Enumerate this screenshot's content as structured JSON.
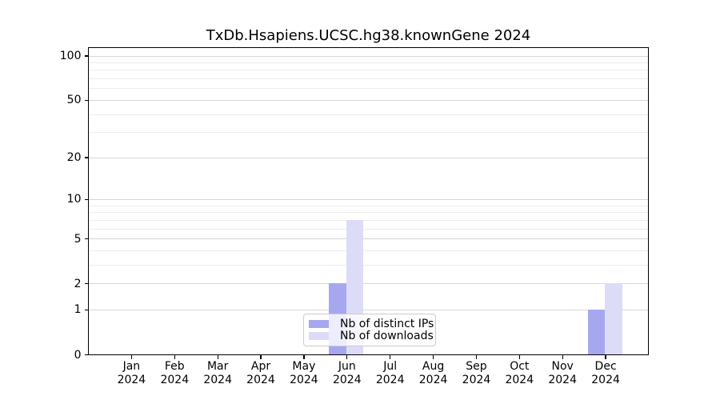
{
  "chart_data": {
    "type": "bar",
    "title": "TxDb.Hsapiens.UCSC.hg38.knownGene 2024",
    "categories": [
      "Jan",
      "Feb",
      "Mar",
      "Apr",
      "May",
      "Jun",
      "Jul",
      "Aug",
      "Sep",
      "Oct",
      "Nov",
      "Dec"
    ],
    "category_year": "2024",
    "series": [
      {
        "name": "Nb of distinct IPs",
        "color": "#a7a7f0",
        "values": [
          0,
          0,
          0,
          0,
          0,
          2,
          0,
          0,
          0,
          0,
          0,
          1
        ]
      },
      {
        "name": "Nb of downloads",
        "color": "#dcdcf8",
        "values": [
          0,
          0,
          0,
          0,
          0,
          7,
          0,
          0,
          0,
          0,
          0,
          2
        ]
      }
    ],
    "ylabel": "",
    "xlabel": "",
    "ylim": [
      0,
      100
    ],
    "y_scale": "log1p",
    "y_major_ticks": [
      100,
      50,
      20,
      10,
      5,
      2,
      1,
      0
    ],
    "y_minor_ticks": [
      90,
      80,
      70,
      60,
      40,
      30,
      9,
      8,
      7,
      6,
      4,
      3
    ],
    "grid": true,
    "legend_position": "lower center"
  },
  "style": {
    "major_grid_color": "#d6d6d6",
    "minor_grid_color": "#ededed",
    "axis_color": "#000000",
    "legend_border_color": "#cccccc",
    "background": "#ffffff"
  }
}
